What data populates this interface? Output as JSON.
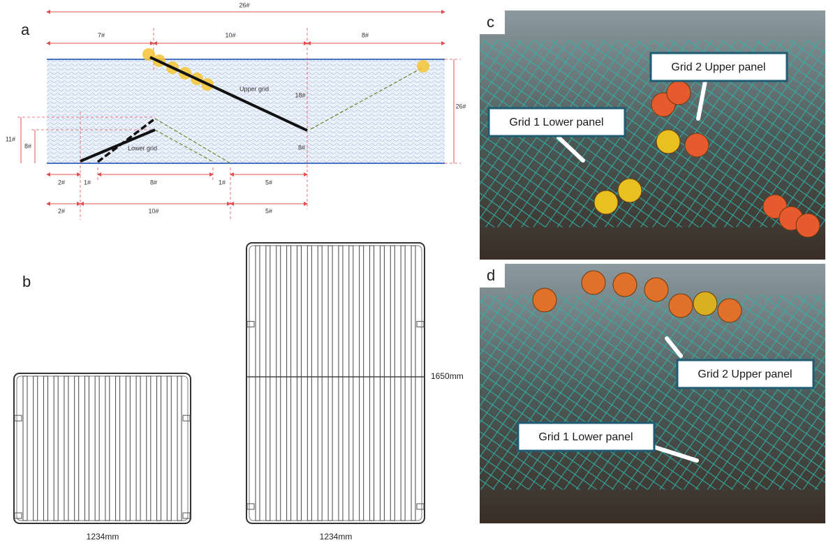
{
  "panel_a": {
    "label": "a",
    "dimensions": [
      "26#",
      "7#",
      "10#",
      "8#",
      "18#",
      "26#",
      "8#",
      "11#",
      "8#",
      "2#",
      "1#",
      "8#",
      "1#",
      "5#",
      "2#",
      "10#",
      "5#"
    ],
    "upper_grid": "Upper grid",
    "lower_grid": "Lower grid"
  },
  "panel_b": {
    "label": "b",
    "grid_1_width": "1234mm",
    "grid_2_width": "1234mm",
    "grid_2_height": "1650mm"
  },
  "panel_c": {
    "label": "c",
    "callouts": [
      "Grid 2 Upper panel",
      "Grid 1 Lower panel"
    ]
  },
  "panel_d": {
    "label": "d",
    "callouts": [
      "Grid 2 Upper panel",
      "Grid 1 Lower panel"
    ]
  }
}
